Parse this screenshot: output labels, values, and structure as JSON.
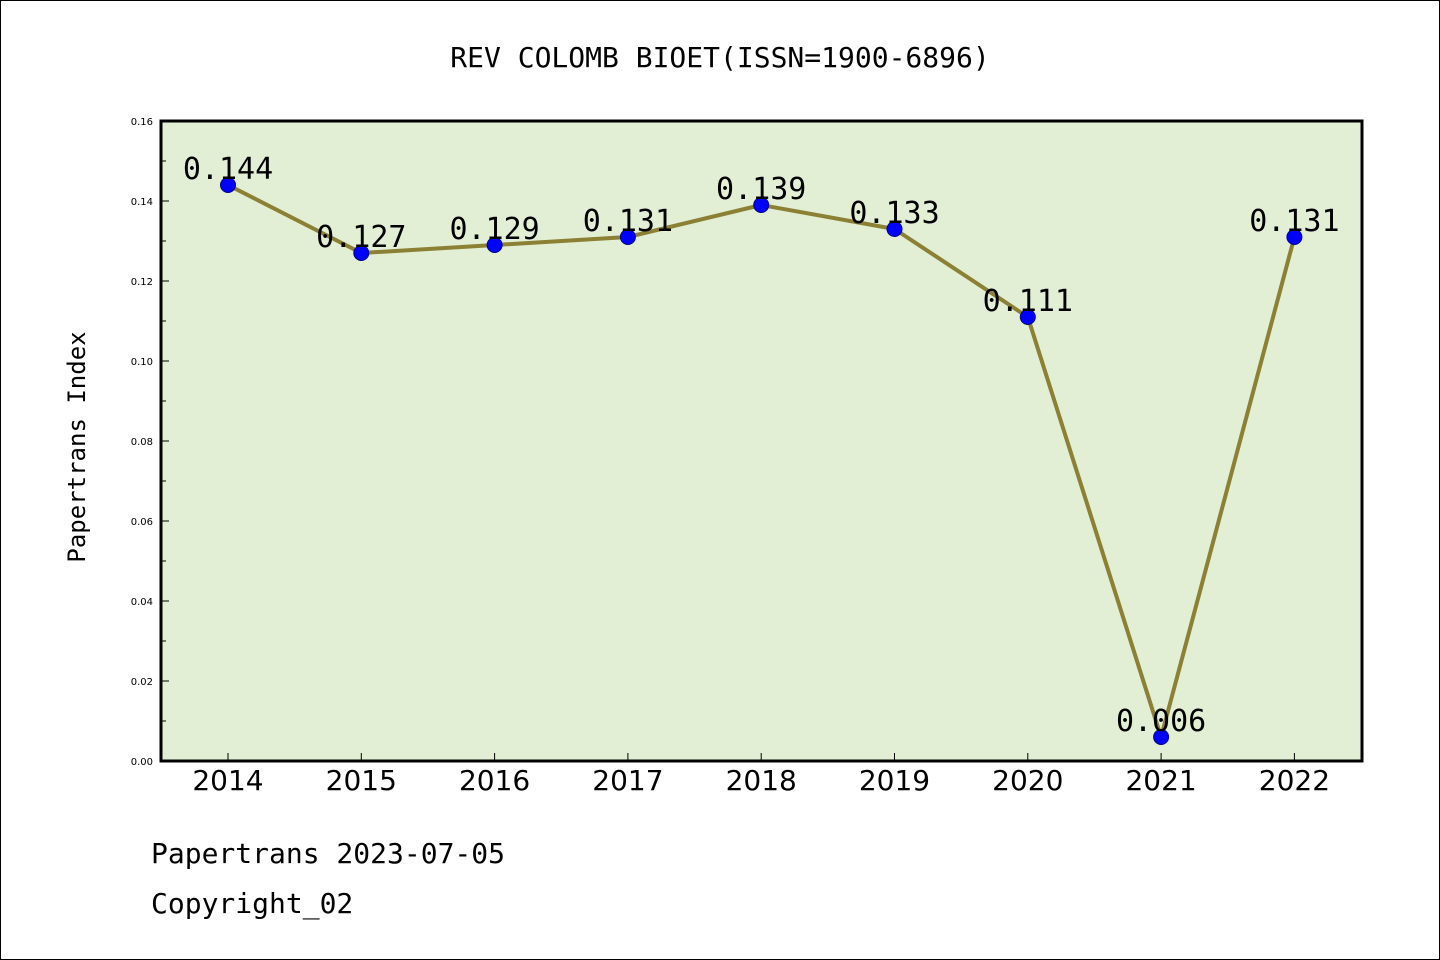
{
  "chart_data": {
    "type": "line",
    "title": "REV COLOMB BIOET(ISSN=1900-6896)",
    "xlabel": "",
    "ylabel": "Papertrans Index",
    "categories": [
      "2014",
      "2015",
      "2016",
      "2017",
      "2018",
      "2019",
      "2020",
      "2021",
      "2022"
    ],
    "series": [
      {
        "values": [
          0.144,
          0.127,
          0.129,
          0.131,
          0.139,
          0.133,
          0.111,
          0.006,
          0.131
        ],
        "data_labels": [
          "0.144",
          "0.127",
          "0.129",
          "0.131",
          "0.139",
          "0.133",
          "0.111",
          "0.006",
          "0.131"
        ]
      }
    ],
    "ylim": [
      0,
      0.16
    ],
    "yticks": [
      "0.00",
      "0.02",
      "0.04",
      "0.06",
      "0.08",
      "0.10",
      "0.12",
      "0.14",
      "0.16"
    ],
    "grid": false,
    "legend": "none",
    "colors": {
      "plot_background": "#e2efd4",
      "line": "#8b8034",
      "marker": "#0000ff",
      "marker_edge": "#00008b"
    }
  },
  "footer": {
    "source": "Papertrans 2023-07-05",
    "copyright": "Copyright_02"
  }
}
